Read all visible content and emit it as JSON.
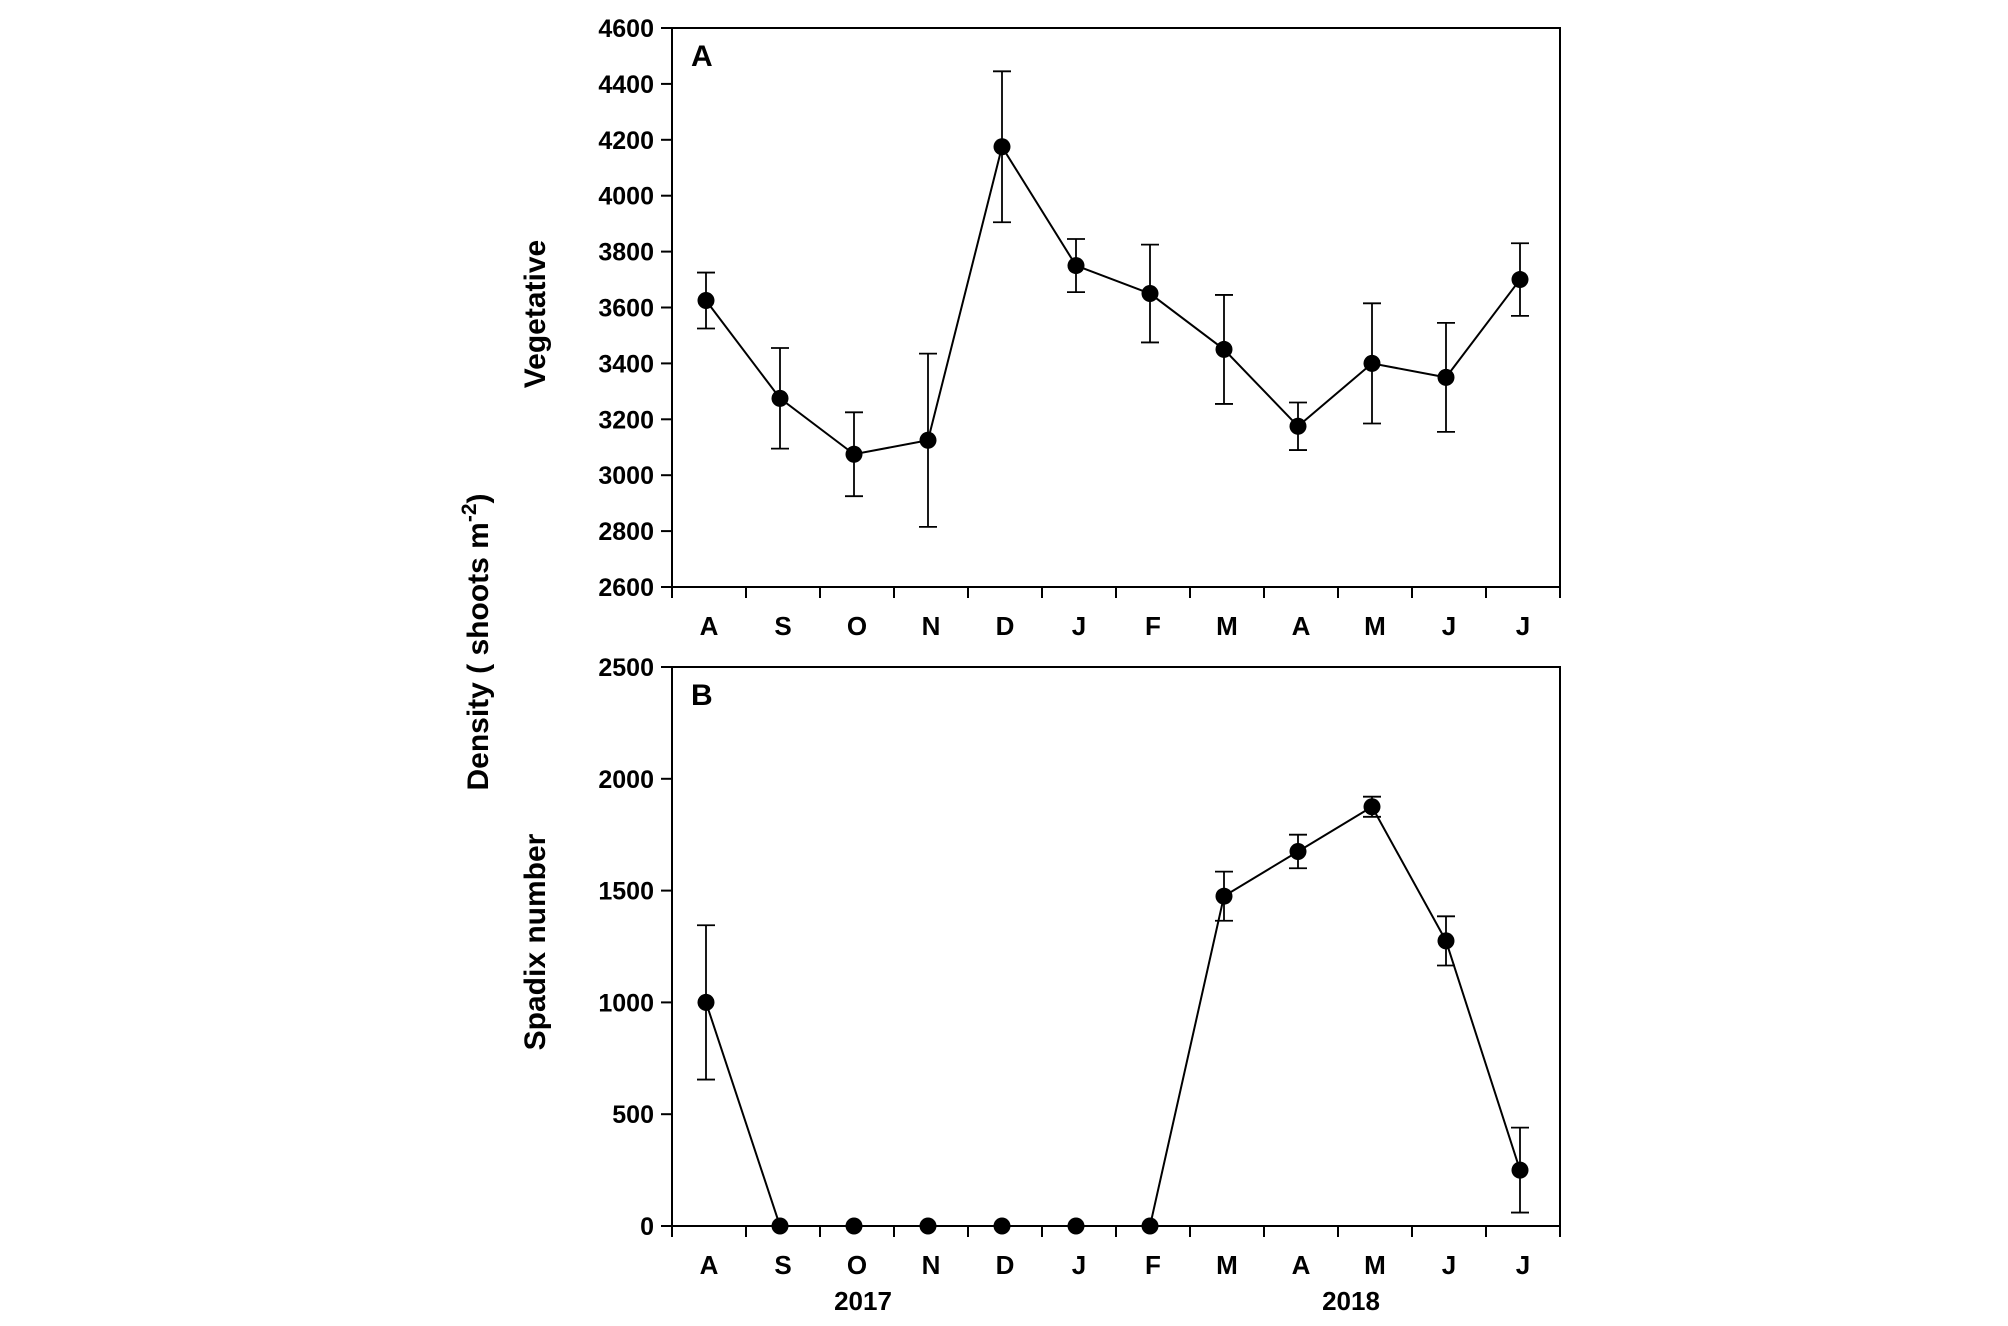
{
  "figure": {
    "ylabel_outer": "Density ( shoots m",
    "ylabel_outer_sup": "-2",
    "ylabel_outer_close": ")",
    "years": [
      "2017",
      "2018"
    ]
  },
  "chart_data": [
    {
      "type": "line",
      "panel_label": "A",
      "title": "",
      "xlabel": "",
      "ylabel": "Vegetative",
      "categories": [
        "A",
        "S",
        "O",
        "N",
        "D",
        "J",
        "F",
        "M",
        "A",
        "M",
        "J",
        "J"
      ],
      "ylim": [
        2600,
        4600
      ],
      "yticks": [
        2600,
        2800,
        3000,
        3200,
        3400,
        3600,
        3800,
        4000,
        4200,
        4400,
        4600
      ],
      "series": [
        {
          "values": [
            3625,
            3275,
            3075,
            3125,
            4175,
            3750,
            3650,
            3450,
            3175,
            3400,
            3350,
            3700
          ],
          "error": [
            100,
            180,
            150,
            310,
            270,
            95,
            175,
            195,
            85,
            215,
            195,
            130
          ]
        }
      ],
      "grid": false
    },
    {
      "type": "line",
      "panel_label": "B",
      "title": "",
      "xlabel": "",
      "ylabel": "Spadix number",
      "categories": [
        "A",
        "S",
        "O",
        "N",
        "D",
        "J",
        "F",
        "M",
        "A",
        "M",
        "J",
        "J"
      ],
      "ylim": [
        0,
        2500
      ],
      "yticks": [
        0,
        500,
        1000,
        1500,
        2000,
        2500
      ],
      "series": [
        {
          "values": [
            1000,
            0,
            0,
            0,
            0,
            0,
            0,
            1475,
            1675,
            1875,
            1275,
            250
          ],
          "error": [
            345,
            0,
            0,
            0,
            0,
            0,
            0,
            110,
            75,
            45,
            110,
            190
          ]
        }
      ],
      "grid": false
    }
  ]
}
